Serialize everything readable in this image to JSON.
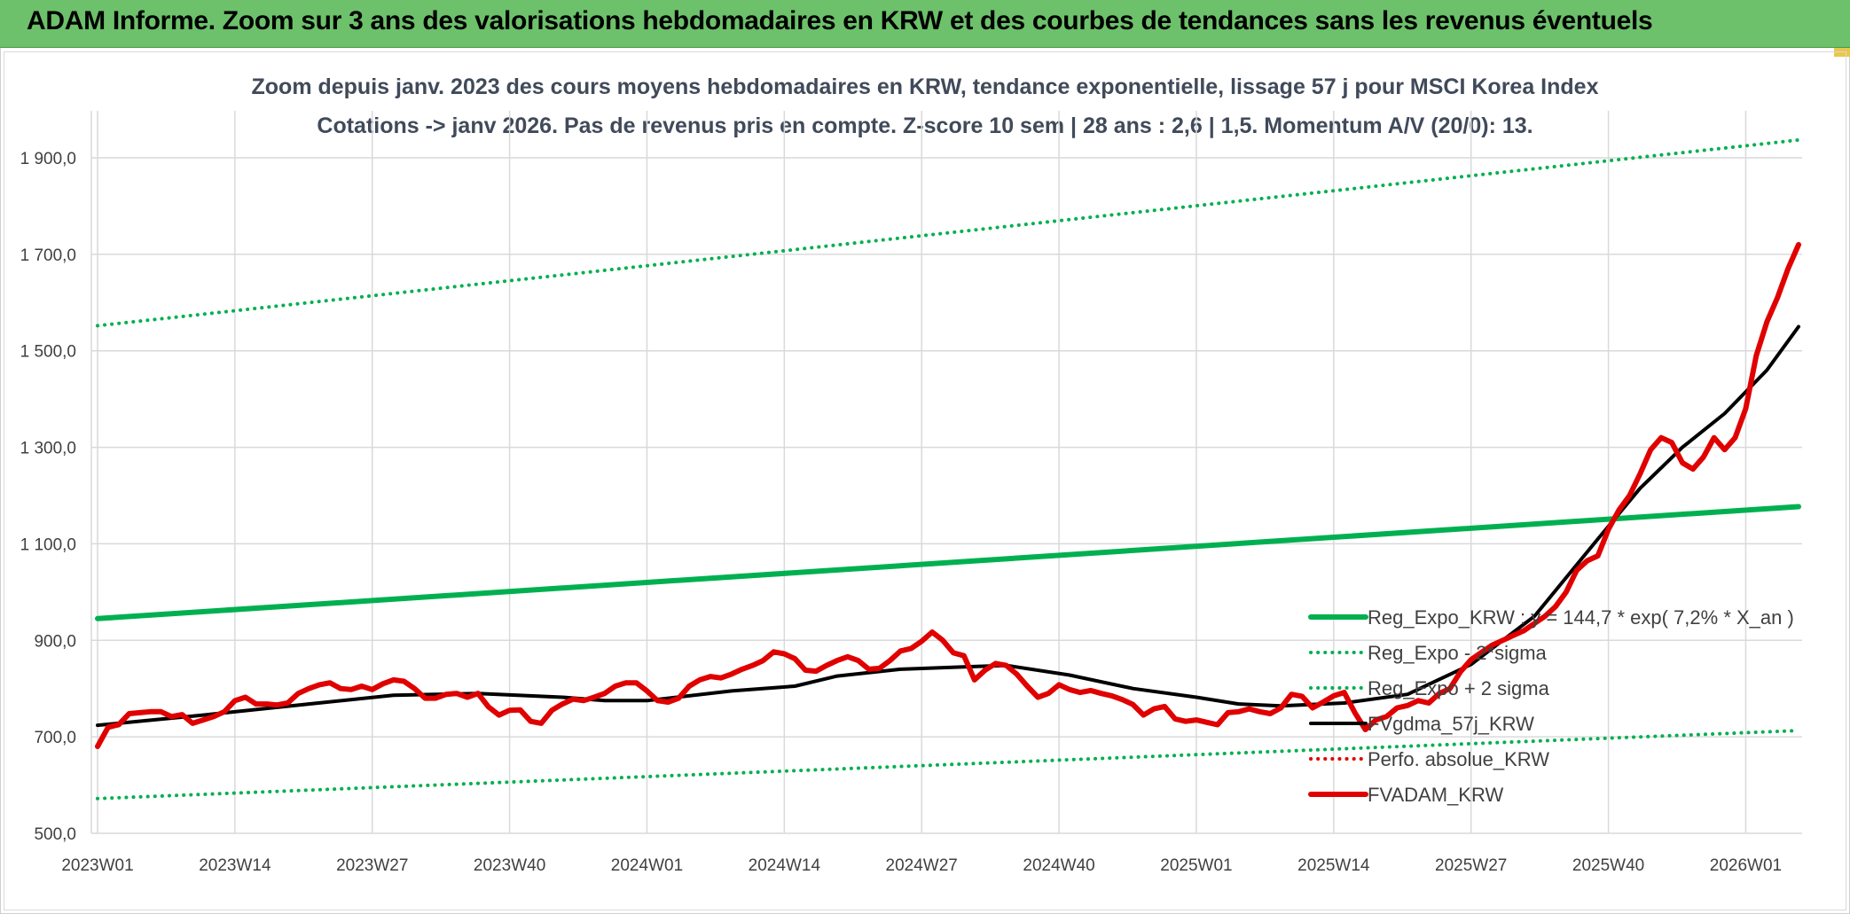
{
  "banner": {
    "title": "ADAM Informe. Zoom sur 3 ans des valorisations hebdomadaires en KRW et des courbes de tendances sans les revenus éventuels"
  },
  "colors": {
    "banner_bg": "#6cc16a",
    "reg_expo": "#00b050",
    "fvadam": "#e00000",
    "fvgdma": "#000000",
    "perfo": "#e00000",
    "grid": "#d9d9d9"
  },
  "chart_data": {
    "type": "line",
    "title": "Zoom depuis janv. 2023 des cours moyens hebdomadaires en KRW, tendance exponentielle, lissage 57 j pour MSCI Korea Index",
    "subtitle": "Cotations -> janv 2026. Pas de revenus pris en compte. Z-score 10 sem | 28 ans : 2,6 | 1,5. Momentum A/V (20/0): 13.",
    "xlabel": "",
    "ylabel": "",
    "ylim": [
      500,
      2000
    ],
    "yticks": [
      "500,0",
      "700,0",
      "900,0",
      "1 100,0",
      "1 300,0",
      "1 500,0",
      "1 700,0",
      "1 900,0"
    ],
    "ytick_values": [
      500,
      700,
      900,
      1100,
      1300,
      1500,
      1700,
      1900
    ],
    "xticks": [
      "2023W01",
      "2023W14",
      "2023W27",
      "2023W40",
      "2024W01",
      "2024W14",
      "2024W27",
      "2024W40",
      "2025W01",
      "2025W14",
      "2025W27",
      "2025W40",
      "2026W01"
    ],
    "week_range": [
      0,
      161
    ],
    "grid": true,
    "legend_position": "right",
    "series": [
      {
        "name": "Reg_Expo_KRW : y = 144,7 * exp( 7,2% *  X_an )",
        "style": "solid-thick",
        "color": "#00b050",
        "x": [
          0,
          161
        ],
        "y": [
          945,
          1177
        ]
      },
      {
        "name": "Reg_Expo - 2*sigma",
        "style": "dotted",
        "color": "#00b050",
        "x": [
          0,
          161
        ],
        "y": [
          572,
          713
        ]
      },
      {
        "name": "Reg_Expo + 2 sigma",
        "style": "dotted",
        "color": "#00b050",
        "x": [
          0,
          161
        ],
        "y": [
          1552,
          1937
        ]
      },
      {
        "name": "FVgdma_57j_KRW",
        "style": "solid",
        "color": "#000000",
        "x": [
          0,
          10,
          20,
          28,
          36,
          44,
          48,
          52,
          60,
          66,
          70,
          76,
          82,
          86,
          92,
          98,
          104,
          108,
          112,
          118,
          124,
          130,
          136,
          142,
          146,
          150,
          154,
          158,
          161
        ],
        "y": [
          724,
          745,
          768,
          786,
          790,
          782,
          775,
          775,
          795,
          805,
          826,
          840,
          845,
          848,
          828,
          800,
          782,
          768,
          764,
          770,
          788,
          850,
          950,
          1110,
          1215,
          1300,
          1370,
          1460,
          1550
        ]
      },
      {
        "name": "Perfo. absolue_KRW",
        "style": "dotted",
        "color": "#e00000",
        "x": [],
        "y": []
      },
      {
        "name": "FVADAM_KRW",
        "style": "solid-thick",
        "color": "#e00000",
        "x": [
          0,
          1,
          2,
          3,
          4,
          5,
          6,
          7,
          8,
          9,
          10,
          11,
          12,
          13,
          14,
          15,
          16,
          17,
          18,
          19,
          20,
          21,
          22,
          23,
          24,
          25,
          26,
          27,
          28,
          29,
          30,
          31,
          32,
          33,
          34,
          35,
          36,
          37,
          38,
          39,
          40,
          41,
          42,
          43,
          44,
          45,
          46,
          47,
          48,
          49,
          50,
          51,
          52,
          53,
          54,
          55,
          56,
          57,
          58,
          59,
          60,
          61,
          62,
          63,
          64,
          65,
          66,
          67,
          68,
          69,
          70,
          71,
          72,
          73,
          74,
          75,
          76,
          77,
          78,
          79,
          80,
          81,
          82,
          83,
          84,
          85,
          86,
          87,
          88,
          89,
          90,
          91,
          92,
          93,
          94,
          95,
          96,
          97,
          98,
          99,
          100,
          101,
          102,
          103,
          104,
          105,
          106,
          107,
          108,
          109,
          110,
          111,
          112,
          113,
          114,
          115,
          116,
          117,
          118,
          119,
          120,
          121,
          122,
          123,
          124,
          125,
          126,
          127,
          128,
          129,
          130,
          131,
          132,
          133,
          134,
          135,
          136,
          137,
          138,
          139,
          140,
          141,
          142,
          143,
          144,
          145,
          146,
          147,
          148,
          149,
          150,
          151,
          152,
          153,
          154,
          155,
          156,
          157,
          158,
          159,
          160,
          161
        ],
        "y": [
          680,
          720,
          725,
          748,
          750,
          752,
          752,
          742,
          746,
          728,
          735,
          742,
          752,
          775,
          782,
          768,
          768,
          766,
          770,
          790,
          800,
          808,
          812,
          800,
          798,
          805,
          798,
          810,
          818,
          815,
          800,
          780,
          780,
          788,
          790,
          782,
          790,
          762,
          745,
          755,
          756,
          732,
          728,
          755,
          768,
          778,
          775,
          782,
          790,
          805,
          812,
          812,
          795,
          775,
          772,
          780,
          805,
          818,
          825,
          822,
          830,
          840,
          848,
          858,
          876,
          872,
          862,
          838,
          836,
          848,
          858,
          866,
          858,
          840,
          842,
          858,
          878,
          883,
          898,
          917,
          900,
          874,
          868,
          818,
          838,
          852,
          848,
          830,
          805,
          782,
          790,
          808,
          798,
          792,
          796,
          790,
          785,
          777,
          767,
          745,
          758,
          763,
          737,
          732,
          735,
          730,
          725,
          750,
          752,
          758,
          752,
          748,
          760,
          788,
          784,
          760,
          772,
          785,
          792,
          750,
          715,
          735,
          742,
          760,
          765,
          775,
          770,
          790,
          800,
          835,
          860,
          875,
          890,
          900,
          910,
          920,
          935,
          950,
          970,
          1000,
          1045,
          1065,
          1075,
          1130,
          1170,
          1200,
          1245,
          1295,
          1320,
          1310,
          1268,
          1255,
          1280,
          1320,
          1295,
          1320,
          1380,
          1490,
          1560,
          1610,
          1670,
          1720
        ]
      }
    ]
  }
}
